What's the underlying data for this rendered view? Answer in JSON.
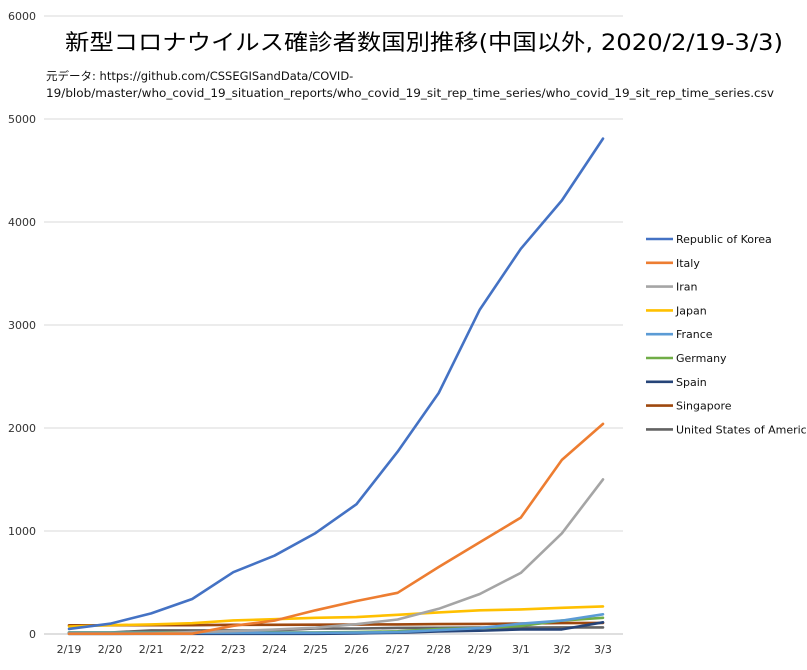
{
  "chart_data": {
    "type": "line",
    "title": "新型コロナウイルス確診者数国別推移(中国以外, 2020/2/19-3/3)",
    "subtitle_lines": [
      "元データ: https://github.com/CSSEGISandData/COVID-",
      "19/blob/master/who_covid_19_situation_reports/who_covid_19_sit_rep_time_series/who_covid_19_sit_rep_time_series.csv"
    ],
    "xlabel": "",
    "ylabel": "",
    "ylim": [
      0,
      6000
    ],
    "yticks": [
      0,
      1000,
      2000,
      3000,
      4000,
      5000,
      6000
    ],
    "grid": true,
    "legend_position": "right",
    "categories": [
      "2/19",
      "2/20",
      "2/21",
      "2/22",
      "2/23",
      "2/24",
      "2/25",
      "2/26",
      "2/27",
      "2/28",
      "2/29",
      "3/1",
      "3/2",
      "3/3"
    ],
    "series": [
      {
        "name": "Republic of Korea",
        "color": "#4472C4",
        "values": [
          50,
          100,
          200,
          340,
          600,
          760,
          980,
          1260,
          1770,
          2340,
          3150,
          3740,
          4210,
          4810
        ]
      },
      {
        "name": "Italy",
        "color": "#ED7D31",
        "values": [
          3,
          3,
          3,
          3,
          80,
          130,
          230,
          320,
          400,
          650,
          890,
          1130,
          1690,
          2040
        ]
      },
      {
        "name": "Iran",
        "color": "#A5A5A5",
        "values": [
          0,
          0,
          5,
          18,
          28,
          43,
          61,
          95,
          141,
          245,
          388,
          593,
          978,
          1501
        ]
      },
      {
        "name": "Japan",
        "color": "#FFC000",
        "values": [
          73,
          85,
          93,
          105,
          132,
          144,
          157,
          164,
          186,
          210,
          230,
          239,
          254,
          268
        ]
      },
      {
        "name": "France",
        "color": "#5B9BD5",
        "values": [
          12,
          12,
          12,
          12,
          12,
          12,
          12,
          14,
          18,
          38,
          57,
          100,
          130,
          191
        ]
      },
      {
        "name": "Germany",
        "color": "#70AD47",
        "values": [
          16,
          16,
          16,
          16,
          16,
          16,
          16,
          18,
          26,
          48,
          57,
          79,
          130,
          157
        ]
      },
      {
        "name": "Spain",
        "color": "#264478",
        "values": [
          2,
          2,
          2,
          2,
          2,
          2,
          2,
          6,
          13,
          25,
          32,
          45,
          45,
          114
        ]
      },
      {
        "name": "Singapore",
        "color": "#9E480E",
        "values": [
          84,
          84,
          85,
          85,
          89,
          89,
          90,
          91,
          93,
          96,
          98,
          102,
          106,
          108
        ]
      },
      {
        "name": "United States of America",
        "color": "#636363",
        "values": [
          15,
          15,
          35,
          35,
          35,
          35,
          53,
          53,
          59,
          60,
          62,
          62,
          64,
          64
        ]
      }
    ]
  }
}
